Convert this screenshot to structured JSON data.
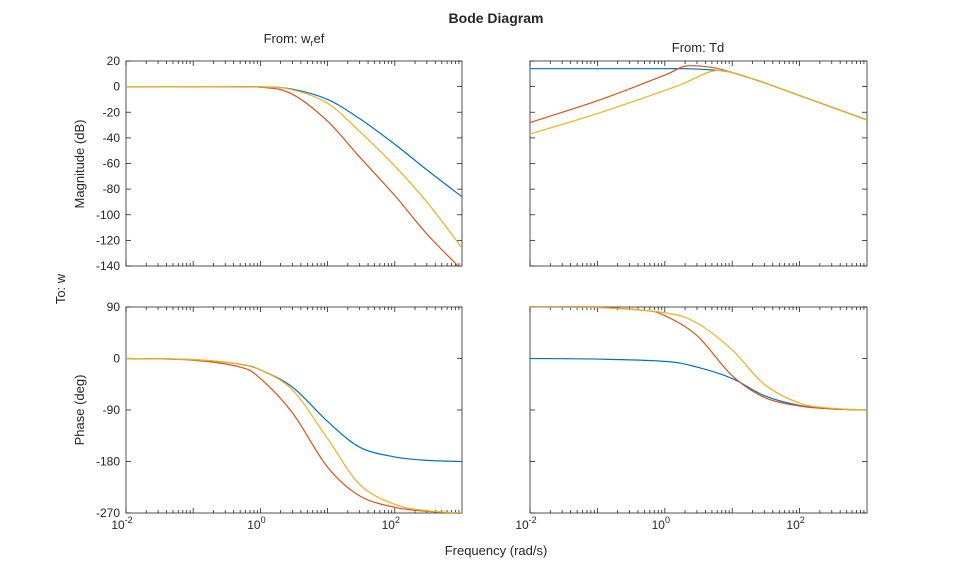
{
  "chart_data": {
    "type": "line",
    "title": "Bode Diagram",
    "xlabel": "Frequency (rad/s)",
    "output_label": "To: w",
    "input_labels": [
      "From: w_ref",
      "From: Td"
    ],
    "input_label_parts": [
      {
        "main": "From: w",
        "sub": "r",
        "rest": "ef"
      },
      {
        "main": "From: Td",
        "sub": "",
        "rest": ""
      }
    ],
    "row_ylabels": [
      "Magnitude (dB)",
      "Phase (deg)"
    ],
    "xscale": "log",
    "xlim": [
      0.01,
      1000
    ],
    "x_ticks": [
      {
        "base": "10",
        "exp": "-2",
        "value": 0.01
      },
      {
        "base": "10",
        "exp": "0",
        "value": 1
      },
      {
        "base": "10",
        "exp": "2",
        "value": 100
      }
    ],
    "magnitude": {
      "ylim": [
        -140,
        20
      ],
      "yticks": [
        20,
        0,
        -20,
        -40,
        -60,
        -80,
        -100,
        -120,
        -140
      ]
    },
    "phase": {
      "ylim": [
        -270,
        90
      ],
      "yticks": [
        90,
        0,
        -90,
        -180,
        -270
      ]
    },
    "series_colors": [
      "#0072BD",
      "#D95319",
      "#EDB120"
    ],
    "panels": [
      {
        "row": "magnitude",
        "col": 0,
        "series": [
          {
            "color": "#0072BD",
            "x": [
              0.01,
              0.1,
              1,
              3,
              10,
              30,
              100,
              300,
              1000
            ],
            "y": [
              0,
              0,
              -0.2,
              -2,
              -10,
              -25,
              -45,
              -65,
              -86
            ]
          },
          {
            "color": "#D95319",
            "x": [
              0.01,
              0.1,
              1,
              3,
              10,
              30,
              100,
              300,
              1000
            ],
            "y": [
              0,
              0,
              -0.5,
              -6,
              -27,
              -55,
              -85,
              -115,
              -143
            ]
          },
          {
            "color": "#EDB120",
            "x": [
              0.01,
              0.1,
              1,
              3,
              10,
              30,
              100,
              300,
              1000
            ],
            "y": [
              0,
              0,
              -0.2,
              -2.5,
              -13,
              -35,
              -62,
              -90,
              -126
            ]
          }
        ]
      },
      {
        "row": "magnitude",
        "col": 1,
        "series": [
          {
            "color": "#0072BD",
            "x": [
              0.01,
              0.1,
              1,
              2,
              5,
              10,
              30,
              100,
              300,
              1000
            ],
            "y": [
              14,
              14,
              14,
              14,
              13,
              11,
              3,
              -7,
              -16,
              -26
            ]
          },
          {
            "color": "#D95319",
            "x": [
              0.01,
              0.1,
              1,
              2,
              5,
              10,
              30,
              100,
              300,
              1000
            ],
            "y": [
              -28,
              -11,
              9,
              16,
              15,
              11,
              3,
              -7,
              -16,
              -26
            ]
          },
          {
            "color": "#EDB120",
            "x": [
              0.01,
              0.1,
              1,
              2,
              5,
              10,
              30,
              100,
              300,
              1000
            ],
            "y": [
              -37,
              -21,
              -3,
              3,
              12,
              11,
              3,
              -7,
              -16,
              -26
            ]
          }
        ]
      },
      {
        "row": "phase",
        "col": 0,
        "series": [
          {
            "color": "#0072BD",
            "x": [
              0.01,
              0.1,
              0.5,
              1,
              3,
              10,
              30,
              100,
              300,
              1000
            ],
            "y": [
              0,
              -2,
              -10,
              -20,
              -50,
              -110,
              -155,
              -172,
              -178,
              -180
            ]
          },
          {
            "color": "#D95319",
            "x": [
              0.01,
              0.1,
              0.5,
              1,
              3,
              10,
              30,
              100,
              300,
              1000
            ],
            "y": [
              0,
              -3,
              -15,
              -35,
              -95,
              -190,
              -240,
              -260,
              -267,
              -270
            ]
          },
          {
            "color": "#EDB120",
            "x": [
              0.01,
              0.1,
              0.5,
              1,
              3,
              10,
              30,
              100,
              300,
              1000
            ],
            "y": [
              0,
              -2,
              -10,
              -20,
              -55,
              -140,
              -220,
              -255,
              -266,
              -270
            ]
          }
        ]
      },
      {
        "row": "phase",
        "col": 1,
        "series": [
          {
            "color": "#0072BD",
            "x": [
              0.01,
              0.1,
              1,
              3,
              10,
              30,
              100,
              300,
              1000
            ],
            "y": [
              0,
              -1,
              -5,
              -15,
              -35,
              -65,
              -82,
              -88,
              -90
            ]
          },
          {
            "color": "#D95319",
            "x": [
              0.01,
              0.1,
              0.5,
              1,
              3,
              10,
              30,
              100,
              300,
              1000
            ],
            "y": [
              90,
              89,
              84,
              75,
              40,
              -30,
              -68,
              -83,
              -88,
              -90
            ]
          },
          {
            "color": "#EDB120",
            "x": [
              0.01,
              0.1,
              1,
              3,
              10,
              30,
              100,
              300,
              1000
            ],
            "y": [
              90,
              89,
              80,
              62,
              15,
              -45,
              -78,
              -87,
              -90
            ]
          }
        ]
      }
    ]
  }
}
